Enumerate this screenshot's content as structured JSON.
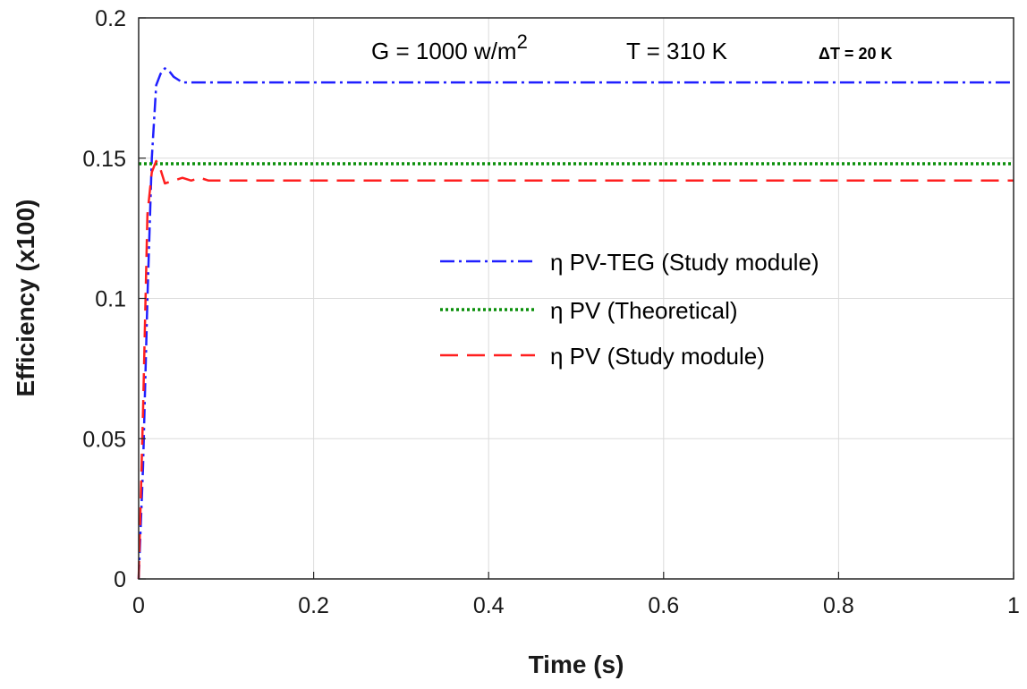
{
  "chart_data": {
    "type": "line",
    "title": "",
    "xlabel": "Time (s)",
    "ylabel": "Efficiency (x100)",
    "xlim": [
      0,
      1
    ],
    "ylim": [
      0,
      0.2
    ],
    "xticks": [
      0,
      0.2,
      0.4,
      0.6,
      0.8,
      1
    ],
    "yticks": [
      0,
      0.05,
      0.1,
      0.15,
      0.2
    ],
    "xtick_labels": [
      "0",
      "0.2",
      "0.4",
      "0.6",
      "0.8",
      "1"
    ],
    "ytick_labels": [
      "0",
      "0.05",
      "0.1",
      "0.15",
      "0.2"
    ],
    "grid": true,
    "legend_position": "center-right",
    "annotations": {
      "irradiance_prefix": "G = 1000 w/m",
      "irradiance_sup": "2",
      "temperature": "T = 310 K",
      "delta_t": "ΔT = 20 K"
    },
    "series": [
      {
        "name": "η PV-TEG (Study module)",
        "color": "#1f1fff",
        "style": "dashdot",
        "x": [
          0,
          0.005,
          0.01,
          0.015,
          0.02,
          0.025,
          0.03,
          0.035,
          0.04,
          0.05,
          0.06,
          0.08,
          0.1,
          0.2,
          0.4,
          0.6,
          0.8,
          1.0
        ],
        "y": [
          0,
          0.04,
          0.1,
          0.15,
          0.176,
          0.18,
          0.182,
          0.181,
          0.179,
          0.177,
          0.177,
          0.177,
          0.177,
          0.177,
          0.177,
          0.177,
          0.177,
          0.177
        ]
      },
      {
        "name": "η  PV (Theoretical)",
        "color": "#0a8f0a",
        "style": "dotted",
        "x": [
          0,
          1
        ],
        "y": [
          0.148,
          0.148
        ]
      },
      {
        "name": "η  PV (Study module)",
        "color": "#ff1f1f",
        "style": "dashed",
        "x": [
          0,
          0.005,
          0.01,
          0.015,
          0.02,
          0.025,
          0.03,
          0.04,
          0.05,
          0.06,
          0.07,
          0.08,
          0.1,
          0.2,
          0.4,
          0.6,
          0.8,
          1.0
        ],
        "y": [
          0,
          0.06,
          0.13,
          0.145,
          0.149,
          0.146,
          0.141,
          0.142,
          0.143,
          0.142,
          0.143,
          0.142,
          0.142,
          0.142,
          0.142,
          0.142,
          0.142,
          0.142
        ]
      }
    ]
  }
}
